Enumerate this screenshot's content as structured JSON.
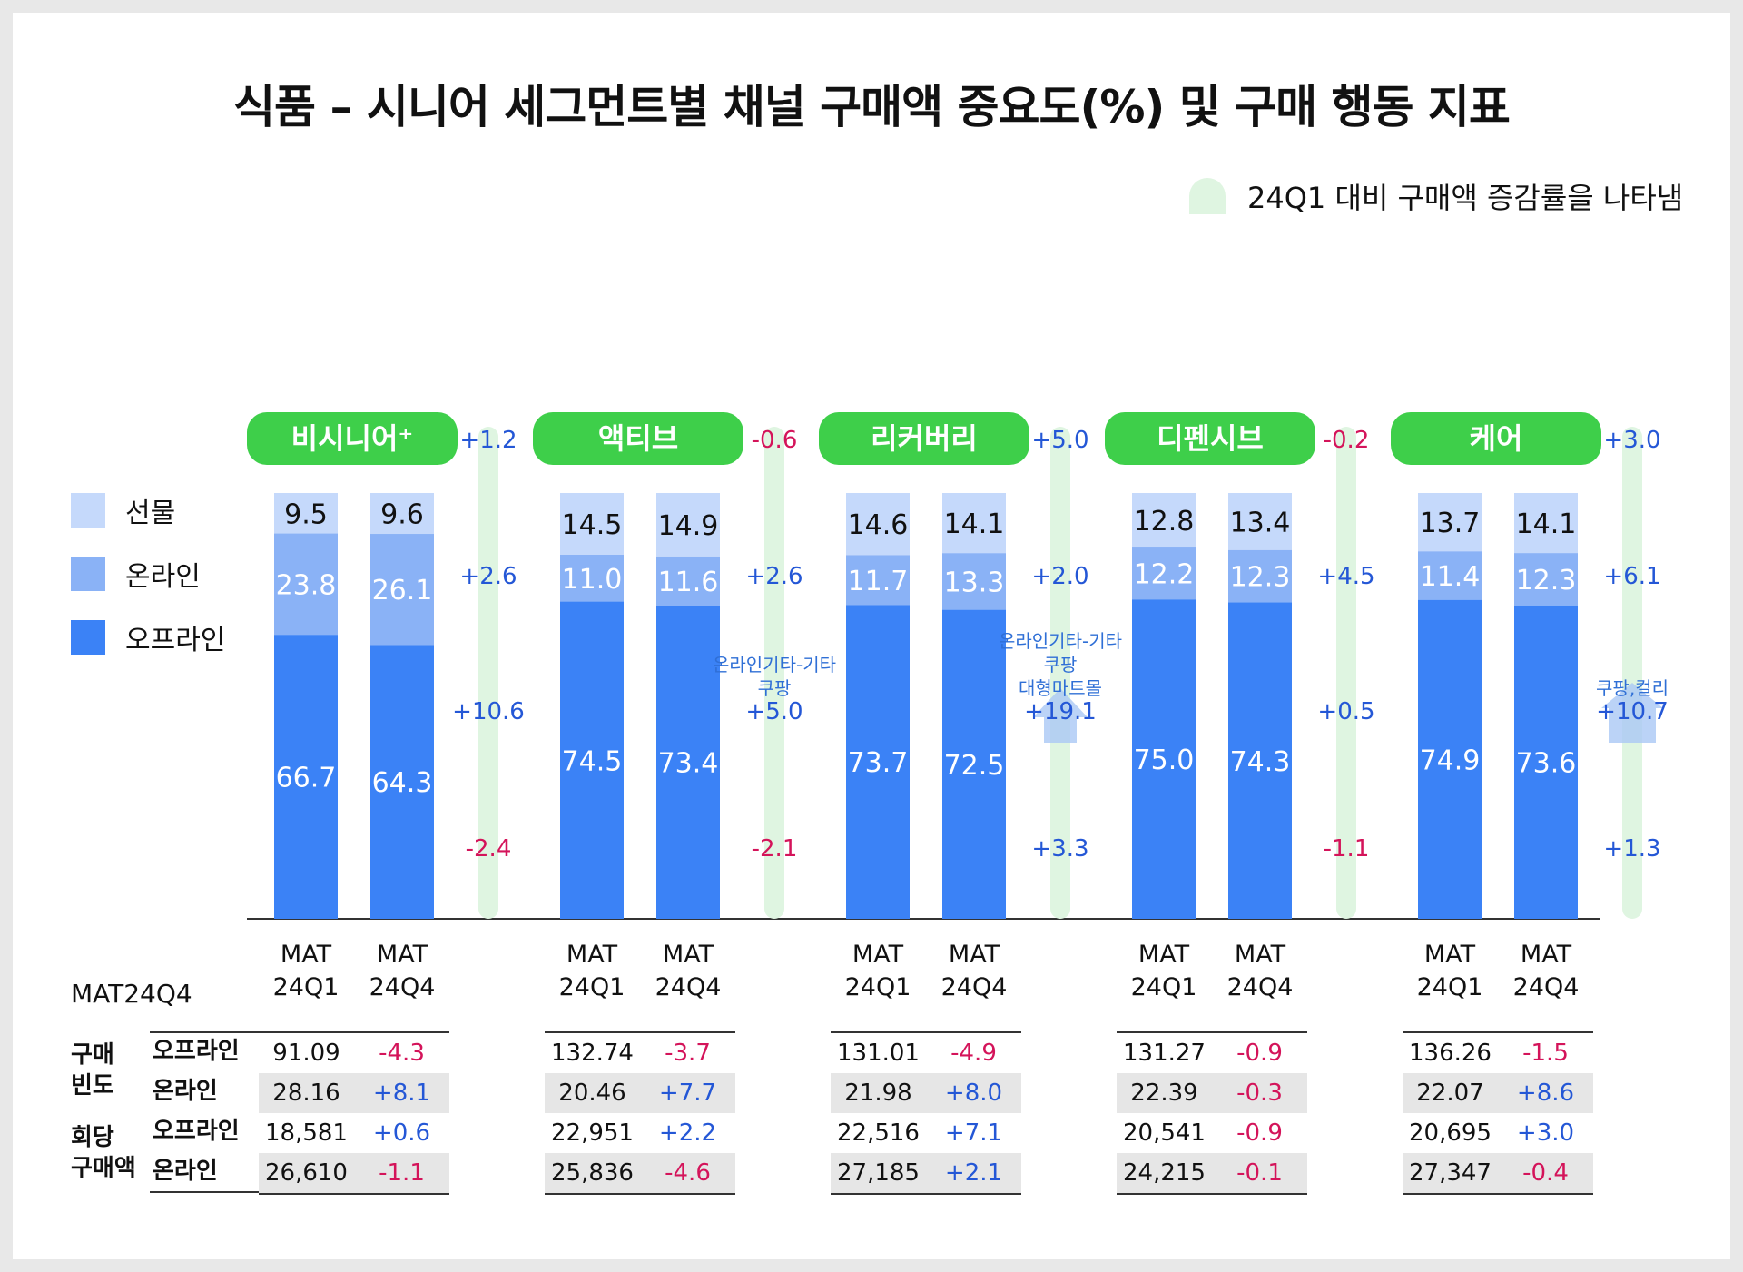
{
  "title": "식품 – 시니어 세그먼트별 채널 구매액 중요도(%) 및 구매 행동 지표",
  "note": {
    "text": "24Q1 대비 구매액 증감률을 나타냄"
  },
  "legend": [
    {
      "label": "선물",
      "color": "#c5d9fb"
    },
    {
      "label": "온라인",
      "color": "#8ab2f6"
    },
    {
      "label": "오프라인",
      "color": "#3b82f6"
    }
  ],
  "colors": {
    "segment_header": "#3ecf4a",
    "change_bar": "#dff5e1",
    "positive": "#2457d6",
    "negative": "#d4145a",
    "up_arrow": "#aac8f5"
  },
  "chart_data": {
    "type": "bar",
    "stacked": true,
    "percent_stacked": true,
    "categories_per_segment": [
      "MAT\n24Q1",
      "MAT\n24Q4"
    ],
    "ylim": [
      0,
      100
    ],
    "segments": [
      {
        "name": "비시니어⁺",
        "total_change": "+1.2",
        "bars": [
          {
            "label": "MAT 24Q1",
            "gift": 9.5,
            "online": 23.8,
            "offline": 66.7
          },
          {
            "label": "MAT 24Q4",
            "gift": 9.6,
            "online": 26.1,
            "offline": 64.3
          }
        ],
        "change_gift": "+2.6",
        "change_online": "+10.6",
        "change_offline": "-2.4",
        "online_note": []
      },
      {
        "name": "액티브",
        "total_change": "-0.6",
        "bars": [
          {
            "label": "MAT 24Q1",
            "gift": 14.5,
            "online": 11.0,
            "offline": 74.5
          },
          {
            "label": "MAT 24Q4",
            "gift": 14.9,
            "online": 11.6,
            "offline": 73.4
          }
        ],
        "change_gift": "+2.6",
        "change_online": "+5.0",
        "change_offline": "-2.1",
        "online_note": [
          "온라인기타-기타",
          "쿠팡"
        ]
      },
      {
        "name": "리커버리",
        "total_change": "+5.0",
        "bars": [
          {
            "label": "MAT 24Q1",
            "gift": 14.6,
            "online": 11.7,
            "offline": 73.7
          },
          {
            "label": "MAT 24Q4",
            "gift": 14.1,
            "online": 13.3,
            "offline": 72.5
          }
        ],
        "change_gift": "+2.0",
        "change_online": "+19.1",
        "change_offline": "+3.3",
        "online_note": [
          "온라인기타-기타",
          "쿠팡",
          "대형마트몰"
        ]
      },
      {
        "name": "디펜시브",
        "total_change": "-0.2",
        "bars": [
          {
            "label": "MAT 24Q1",
            "gift": 12.8,
            "online": 12.2,
            "offline": 75.0
          },
          {
            "label": "MAT 24Q4",
            "gift": 13.4,
            "online": 12.3,
            "offline": 74.3
          }
        ],
        "change_gift": "+4.5",
        "change_online": "+0.5",
        "change_offline": "-1.1",
        "online_note": []
      },
      {
        "name": "케어",
        "total_change": "+3.0",
        "bars": [
          {
            "label": "MAT 24Q1",
            "gift": 13.7,
            "online": 11.4,
            "offline": 74.9
          },
          {
            "label": "MAT 24Q4",
            "gift": 14.1,
            "online": 12.3,
            "offline": 73.6
          }
        ],
        "change_gift": "+6.1",
        "change_online": "+10.7",
        "change_offline": "+1.3",
        "online_note": [
          "쿠팡,컬리"
        ]
      }
    ]
  },
  "table": {
    "period_label": "MAT24Q4",
    "groups": [
      {
        "label_lines": [
          "구매",
          "빈도"
        ],
        "channels": [
          "오프라인",
          "온라인"
        ]
      },
      {
        "label_lines": [
          "회당",
          "구매액"
        ],
        "channels": [
          "오프라인",
          "온라인"
        ]
      }
    ],
    "segments": [
      {
        "rows": [
          [
            "91.09",
            "-4.3"
          ],
          [
            "28.16",
            "+8.1"
          ],
          [
            "18,581",
            "+0.6"
          ],
          [
            "26,610",
            "-1.1"
          ]
        ]
      },
      {
        "rows": [
          [
            "132.74",
            "-3.7"
          ],
          [
            "20.46",
            "+7.7"
          ],
          [
            "22,951",
            "+2.2"
          ],
          [
            "25,836",
            "-4.6"
          ]
        ]
      },
      {
        "rows": [
          [
            "131.01",
            "-4.9"
          ],
          [
            "21.98",
            "+8.0"
          ],
          [
            "22,516",
            "+7.1"
          ],
          [
            "27,185",
            "+2.1"
          ]
        ]
      },
      {
        "rows": [
          [
            "131.27",
            "-0.9"
          ],
          [
            "22.39",
            "-0.3"
          ],
          [
            "20,541",
            "-0.9"
          ],
          [
            "24,215",
            "-0.1"
          ]
        ]
      },
      {
        "rows": [
          [
            "136.26",
            "-1.5"
          ],
          [
            "22.07",
            "+8.6"
          ],
          [
            "20,695",
            "+3.0"
          ],
          [
            "27,347",
            "-0.4"
          ]
        ]
      }
    ]
  }
}
